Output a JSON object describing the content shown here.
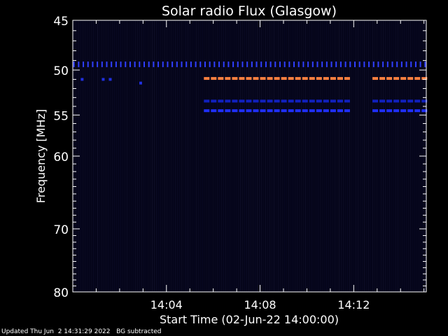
{
  "footer": {
    "updated": "Updated Thu Jun  2 14:31:29 2022",
    "mode": "BG subtracted"
  },
  "colors": {
    "background": "#000000",
    "plot_background": "#05051a",
    "axis": "#ffffff",
    "band_blue": "#1f2fff",
    "band_orange": "#ff8040",
    "band_dark_blue": "#1828d0"
  },
  "chart_data": {
    "type": "heatmap",
    "title": "Solar radio Flux (Glasgow)",
    "xlabel": "Start Time (02-Jun-22 14:00:00)",
    "ylabel": "Frequency [MHz]",
    "x_unit": "minutes after 14:00:00",
    "xlim": [
      0.0,
      15.1
    ],
    "ylim": [
      45,
      80
    ],
    "y_scale": "log",
    "y_inverted": true,
    "x_tick_labels": [
      {
        "value": 4,
        "label": "14:04"
      },
      {
        "value": 8,
        "label": "14:08"
      },
      {
        "value": 12,
        "label": "14:12"
      }
    ],
    "y_tick_labels": [
      {
        "value": 45,
        "label": "45"
      },
      {
        "value": 50,
        "label": "50"
      },
      {
        "value": 55,
        "label": "55"
      },
      {
        "value": 60,
        "label": "60"
      },
      {
        "value": 70,
        "label": "70"
      },
      {
        "value": 80,
        "label": "80"
      }
    ],
    "bands": [
      {
        "name": "49.4 MHz dashed interference",
        "freq": 49.4,
        "x_start": 0.0,
        "x_end": 15.1,
        "color": "#2f3fff",
        "style": "ticks"
      },
      {
        "name": "50.9 MHz orange",
        "freq": 50.9,
        "segments": [
          [
            5.6,
            11.8
          ],
          [
            12.8,
            15.1
          ]
        ],
        "color": "#ff8040"
      },
      {
        "name": "53.4 MHz blue",
        "freq": 53.4,
        "segments": [
          [
            5.6,
            11.8
          ],
          [
            12.8,
            15.1
          ]
        ],
        "color": "#1020c0"
      },
      {
        "name": "54.5 MHz blue",
        "freq": 54.5,
        "segments": [
          [
            5.6,
            11.8
          ],
          [
            12.8,
            15.1
          ]
        ],
        "color": "#1f2fff"
      }
    ],
    "spots": [
      {
        "x": 0.4,
        "freq": 51.0
      },
      {
        "x": 1.3,
        "freq": 51.0
      },
      {
        "x": 1.6,
        "freq": 51.0
      },
      {
        "x": 2.9,
        "freq": 51.4
      }
    ],
    "background": "near-zero background-subtracted flux across the observed range"
  }
}
